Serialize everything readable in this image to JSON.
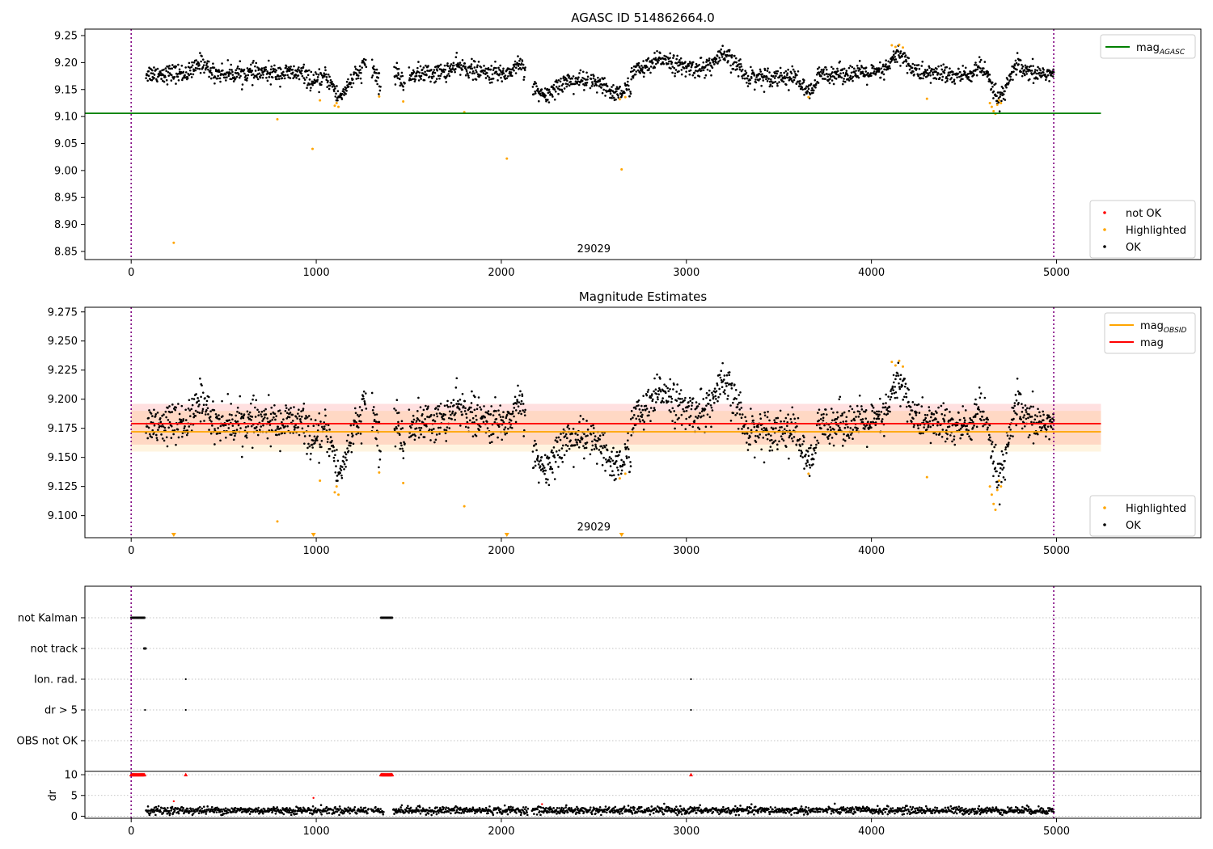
{
  "chart_data": [
    {
      "type": "scatter",
      "title": "AGASC ID 514862664.0",
      "xlabel": "",
      "ylabel": "",
      "xlim": [
        -250,
        5780
      ],
      "ylim": [
        8.835,
        9.262
      ],
      "x_ticks": [
        0,
        1000,
        2000,
        3000,
        4000,
        5000
      ],
      "y_ticks": [
        8.85,
        8.9,
        8.95,
        9.0,
        9.05,
        9.1,
        9.15,
        9.2,
        9.25
      ],
      "grid": false,
      "vlines": [
        0,
        4985
      ],
      "obsid_label": {
        "x": 2500,
        "text": "29029"
      },
      "reference_lines": [
        {
          "name": "mag_AGASC",
          "value": 9.106,
          "x_range": [
            -250,
            5240
          ],
          "color": "#008000"
        }
      ],
      "legends": [
        {
          "position": "top-right",
          "entries": [
            {
              "label": "mag",
              "sub": "AGASC",
              "kind": "line",
              "color": "#008000"
            }
          ]
        },
        {
          "position": "bottom-right",
          "entries": [
            {
              "label": "not OK",
              "kind": "dot",
              "color": "#ff0000"
            },
            {
              "label": "Highlighted",
              "kind": "dot",
              "color": "#ffa500"
            },
            {
              "label": "OK",
              "kind": "dot",
              "color": "#000000"
            }
          ]
        }
      ],
      "series": [
        {
          "name": "OK",
          "color": "#000000",
          "x_range": [
            80,
            4985
          ],
          "count": 2200,
          "style": "time_series"
        },
        {
          "name": "Highlighted",
          "color": "#ffa500",
          "points": [
            [
              230,
              8.866
            ],
            [
              790,
              9.095
            ],
            [
              980,
              9.04
            ],
            [
              1020,
              9.13
            ],
            [
              1100,
              9.12
            ],
            [
              1110,
              9.125
            ],
            [
              1120,
              9.118
            ],
            [
              1340,
              9.137
            ],
            [
              1470,
              9.128
            ],
            [
              1800,
              9.108
            ],
            [
              2030,
              9.022
            ],
            [
              2650,
              9.002
            ],
            [
              2640,
              9.132
            ],
            [
              2670,
              9.136
            ],
            [
              3660,
              9.136
            ],
            [
              4110,
              9.232
            ],
            [
              4130,
              9.229
            ],
            [
              4150,
              9.233
            ],
            [
              4170,
              9.228
            ],
            [
              4300,
              9.133
            ],
            [
              4640,
              9.125
            ],
            [
              4650,
              9.118
            ],
            [
              4660,
              9.11
            ],
            [
              4670,
              9.105
            ],
            [
              4680,
              9.122
            ],
            [
              4690,
              9.13
            ],
            [
              4700,
              9.125
            ]
          ]
        }
      ]
    },
    {
      "type": "scatter",
      "title": "Magnitude Estimates",
      "xlabel": "",
      "ylabel": "",
      "xlim": [
        -250,
        5780
      ],
      "ylim": [
        9.081,
        9.279
      ],
      "x_ticks": [
        0,
        1000,
        2000,
        3000,
        4000,
        5000
      ],
      "y_ticks": [
        9.1,
        9.125,
        9.15,
        9.175,
        9.2,
        9.225,
        9.25,
        9.275
      ],
      "grid": false,
      "vlines": [
        0,
        4985
      ],
      "obsid_label": {
        "x": 2500,
        "text": "29029"
      },
      "bands": [
        {
          "y0": 9.161,
          "y1": 9.196,
          "x_range": [
            0,
            5240
          ],
          "color": "#ff0000",
          "opacity": 0.12
        },
        {
          "y0": 9.155,
          "y1": 9.19,
          "x_range": [
            0,
            5240
          ],
          "color": "#ffa500",
          "opacity": 0.12
        }
      ],
      "reference_lines": [
        {
          "name": "mag",
          "value": 9.179,
          "x_range": [
            0,
            5240
          ],
          "color": "#ff0000"
        },
        {
          "name": "mag_OBSID",
          "value": 9.172,
          "x_range": [
            0,
            5240
          ],
          "color": "#ffa500"
        }
      ],
      "out_of_range_markers": [
        230,
        985,
        2030,
        2650
      ],
      "legends": [
        {
          "position": "top-right",
          "entries": [
            {
              "label": "mag",
              "sub": "OBSID",
              "kind": "line",
              "color": "#ffa500"
            },
            {
              "label": "mag",
              "kind": "line",
              "color": "#ff0000"
            }
          ]
        },
        {
          "position": "bottom-right",
          "entries": [
            {
              "label": "Highlighted",
              "kind": "dot",
              "color": "#ffa500"
            },
            {
              "label": "OK",
              "kind": "dot",
              "color": "#000000"
            }
          ]
        }
      ]
    },
    {
      "type": "scatter",
      "title": "",
      "xlim": [
        -250,
        5780
      ],
      "categories": [
        "not Kalman",
        "not track",
        "Ion. rad.",
        "dr > 5",
        "OBS not OK"
      ],
      "flags": [
        {
          "category": "not Kalman",
          "ranges": [
            [
              0,
              75
            ],
            [
              1350,
              1410
            ]
          ]
        },
        {
          "category": "not track",
          "ranges": [
            [
              70,
              80
            ]
          ]
        },
        {
          "category": "Ion. rad.",
          "points": [
            295,
            3025
          ]
        },
        {
          "category": "dr > 5",
          "points": [
            75,
            295,
            3025
          ]
        },
        {
          "category": "OBS not OK",
          "points": []
        }
      ]
    },
    {
      "type": "scatter",
      "title": "",
      "xlabel": "",
      "ylabel": "dr",
      "xlim": [
        -250,
        5780
      ],
      "ylim": [
        -0.5,
        10.8
      ],
      "x_ticks": [
        0,
        1000,
        2000,
        3000,
        4000,
        5000
      ],
      "y_ticks": [
        0,
        5,
        10
      ],
      "vlines": [
        0,
        4985
      ],
      "clipped_points": [
        [
          0,
          75
        ],
        [
          295,
          295
        ],
        [
          1350,
          1410
        ],
        [
          3025,
          3025
        ]
      ],
      "outliers": [
        [
          230,
          3.6
        ],
        [
          985,
          4.4
        ],
        [
          2220,
          2.9
        ]
      ],
      "series": [
        {
          "name": "dr",
          "color": "#000000",
          "x_range": [
            80,
            4985
          ],
          "typical": 1.4
        }
      ]
    }
  ]
}
